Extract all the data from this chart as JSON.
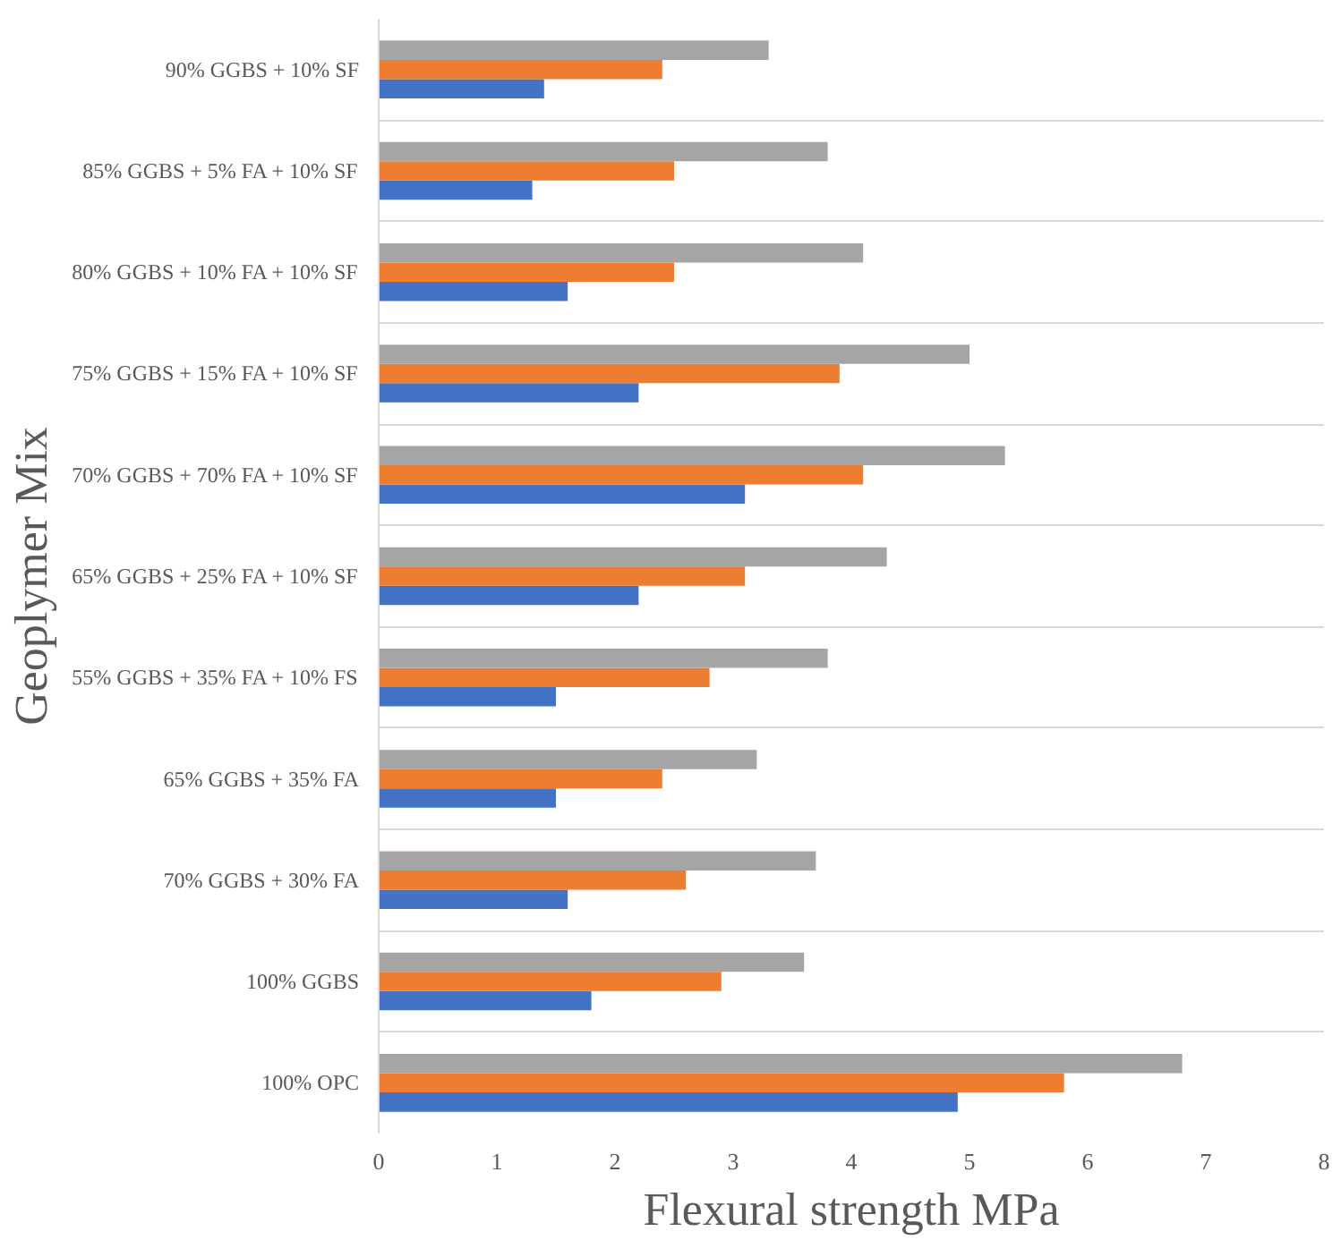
{
  "chart_data": {
    "type": "bar",
    "orientation": "horizontal",
    "xlabel": "Flexural strength MPa",
    "ylabel": "Geoplymer Mix",
    "categories": [
      "90% GGBS + 10% SF",
      "85% GGBS + 5% FA + 10% SF",
      "80% GGBS + 10% FA + 10% SF",
      "75% GGBS + 15% FA + 10% SF",
      "70% GGBS + 70% FA + 10% SF",
      "65% GGBS + 25% FA + 10% SF",
      "55% GGBS + 35% FA + 10% FS",
      "65% GGBS + 35% FA",
      "70% GGBS + 30% FA",
      "100% GGBS",
      "100% OPC"
    ],
    "series": [
      {
        "color": "#4472c4",
        "values": [
          1.4,
          1.3,
          1.6,
          2.2,
          3.1,
          2.2,
          1.5,
          1.5,
          1.6,
          1.8,
          4.9
        ]
      },
      {
        "color": "#ed7d31",
        "values": [
          2.4,
          2.5,
          2.5,
          3.9,
          4.1,
          3.1,
          2.8,
          2.4,
          2.6,
          2.9,
          5.8
        ]
      },
      {
        "color": "#a5a5a5",
        "values": [
          3.3,
          3.8,
          4.1,
          5.0,
          5.3,
          4.3,
          3.8,
          3.2,
          3.7,
          3.6,
          6.8
        ]
      }
    ],
    "xlim": [
      0,
      8
    ],
    "xticks": [
      0,
      1,
      2,
      3,
      4,
      5,
      6,
      7,
      8
    ],
    "grid": "y"
  }
}
